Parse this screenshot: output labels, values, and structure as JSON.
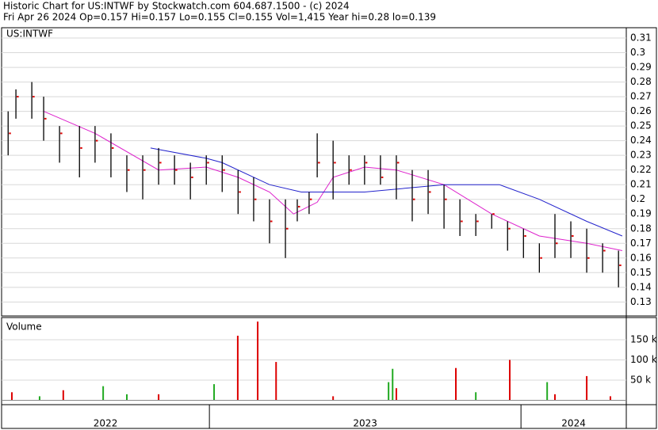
{
  "header": {
    "title": "Historic Chart for US:INTWF by Stockwatch.com 604.687.1500 - (c) 2024",
    "quote": "Fri Apr 26 2024  Op=0.157  Hi=0.157  Lo=0.155  Cl=0.155  Vol=1,415  Year hi=0.28  lo=0.139"
  },
  "chart_data": [
    {
      "type": "ohlc",
      "title": "US:INTWF",
      "grid": true,
      "xlim": [
        2022.333,
        2024.338
      ],
      "ylim": [
        0.121,
        0.3165
      ],
      "yticks": [
        0.13,
        0.14,
        0.15,
        0.16,
        0.17,
        0.18,
        0.19,
        0.2,
        0.21,
        0.22,
        0.23,
        0.24,
        0.25,
        0.26,
        0.27,
        0.28,
        0.29,
        0.3,
        0.31
      ],
      "xticks": [
        2023,
        2024
      ],
      "periods": [
        "2022",
        "2023",
        "2024"
      ],
      "bar_color": "#000000",
      "close_color": "#dd0000",
      "x": [
        2022.354,
        2022.379,
        2022.43,
        2022.468,
        2022.519,
        2022.583,
        2022.633,
        2022.684,
        2022.735,
        2022.786,
        2022.837,
        2022.888,
        2022.939,
        2022.99,
        2023.041,
        2023.092,
        2023.142,
        2023.193,
        2023.244,
        2023.282,
        2023.32,
        2023.346,
        2023.397,
        2023.448,
        2023.498,
        2023.549,
        2023.6,
        2023.651,
        2023.702,
        2023.753,
        2023.804,
        2023.855,
        2023.906,
        2023.957,
        2024.008,
        2024.059,
        2024.109,
        2024.16,
        2024.211,
        2024.262,
        2024.313
      ],
      "high": [
        0.26,
        0.275,
        0.28,
        0.27,
        0.25,
        0.25,
        0.25,
        0.245,
        0.23,
        0.23,
        0.235,
        0.23,
        0.225,
        0.23,
        0.23,
        0.22,
        0.215,
        0.2,
        0.2,
        0.2,
        0.205,
        0.245,
        0.24,
        0.23,
        0.23,
        0.23,
        0.23,
        0.22,
        0.22,
        0.21,
        0.2,
        0.19,
        0.19,
        0.185,
        0.18,
        0.17,
        0.19,
        0.185,
        0.18,
        0.17,
        0.165
      ],
      "low": [
        0.23,
        0.255,
        0.255,
        0.24,
        0.225,
        0.215,
        0.225,
        0.215,
        0.205,
        0.2,
        0.21,
        0.21,
        0.2,
        0.21,
        0.205,
        0.19,
        0.185,
        0.17,
        0.16,
        0.185,
        0.19,
        0.215,
        0.2,
        0.21,
        0.21,
        0.21,
        0.2,
        0.185,
        0.19,
        0.18,
        0.175,
        0.175,
        0.18,
        0.165,
        0.16,
        0.15,
        0.16,
        0.16,
        0.15,
        0.15,
        0.14
      ],
      "close": [
        0.245,
        0.27,
        0.27,
        0.255,
        0.245,
        0.235,
        0.24,
        0.235,
        0.22,
        0.22,
        0.225,
        0.22,
        0.215,
        0.225,
        0.22,
        0.205,
        0.2,
        0.185,
        0.18,
        0.195,
        0.2,
        0.225,
        0.225,
        0.22,
        0.225,
        0.215,
        0.225,
        0.2,
        0.205,
        0.2,
        0.185,
        0.185,
        0.19,
        0.18,
        0.175,
        0.16,
        0.17,
        0.175,
        0.16,
        0.165,
        0.155
      ],
      "averages": [
        {
          "color": "#dd22cc",
          "x": [
            2022.468,
            2022.633,
            2022.837,
            2022.99,
            2023.092,
            2023.193,
            2023.27,
            2023.346,
            2023.397,
            2023.498,
            2023.6,
            2023.753,
            2023.906,
            2024.059,
            2024.211,
            2024.325
          ],
          "values": [
            0.26,
            0.245,
            0.22,
            0.222,
            0.215,
            0.205,
            0.19,
            0.198,
            0.215,
            0.222,
            0.22,
            0.21,
            0.19,
            0.175,
            0.17,
            0.165
          ]
        },
        {
          "color": "#2222cc",
          "x": [
            2022.811,
            2022.99,
            2023.041,
            2023.193,
            2023.295,
            2023.498,
            2023.753,
            2023.931,
            2024.059,
            2024.211,
            2024.325
          ],
          "values": [
            0.235,
            0.228,
            0.225,
            0.21,
            0.205,
            0.205,
            0.21,
            0.21,
            0.2,
            0.185,
            0.175
          ]
        }
      ]
    },
    {
      "type": "volume",
      "title": "Volume",
      "grid": true,
      "xlim": [
        2022.333,
        2024.338
      ],
      "ylim": [
        0,
        205000
      ],
      "yticks": [
        {
          "value": 50000,
          "label": "50 k"
        },
        {
          "value": 100000,
          "label": "100 k"
        },
        {
          "value": 150000,
          "label": "150 k"
        }
      ],
      "bars": [
        {
          "color": "#dd0000",
          "x": [
            2022.366,
            2022.531,
            2022.837,
            2023.091,
            2023.155,
            2023.214,
            2023.397,
            2023.6,
            2023.791,
            2023.964,
            2024.109,
            2024.211,
            2024.287
          ],
          "values": [
            20000,
            25000,
            15000,
            160000,
            195000,
            95000,
            10000,
            30000,
            80000,
            100000,
            15000,
            60000,
            10000
          ]
        },
        {
          "color": "#22aa22",
          "x": [
            2022.455,
            2022.659,
            2022.735,
            2023.015,
            2023.575,
            2023.588,
            2023.855,
            2024.084
          ],
          "values": [
            10000,
            35000,
            15000,
            40000,
            45000,
            78000,
            20000,
            45000
          ]
        }
      ]
    }
  ]
}
